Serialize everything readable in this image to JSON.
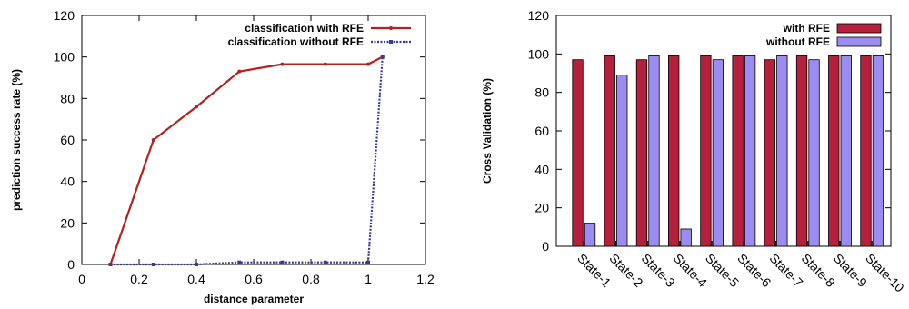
{
  "chart_data": [
    {
      "type": "line",
      "title": "",
      "xlabel": "distance parameter",
      "ylabel": "prediction success rate (%)",
      "xlim": [
        0,
        1.2
      ],
      "ylim": [
        0,
        120
      ],
      "xticks": [
        "0",
        "0.2",
        "0.4",
        "0.6",
        "0.8",
        "1",
        "1.2"
      ],
      "yticks": [
        "0",
        "20",
        "40",
        "60",
        "80",
        "100",
        "120"
      ],
      "grid": false,
      "legend_position": "top-right",
      "series": [
        {
          "name": "classification with RFE",
          "color": "#b22222",
          "style": "solid",
          "points": [
            [
              0.1,
              0
            ],
            [
              0.25,
              60
            ],
            [
              0.4,
              76
            ],
            [
              0.55,
              93
            ],
            [
              0.7,
              96.5
            ],
            [
              0.85,
              96.5
            ],
            [
              1.0,
              96.5
            ],
            [
              1.05,
              100
            ]
          ]
        },
        {
          "name": "classification without RFE",
          "color": "#3b3b8f",
          "style": "dotted",
          "points": [
            [
              0.1,
              0
            ],
            [
              0.25,
              0
            ],
            [
              0.4,
              0
            ],
            [
              0.55,
              1
            ],
            [
              0.7,
              1
            ],
            [
              0.85,
              1
            ],
            [
              1.0,
              1
            ],
            [
              1.05,
              100
            ]
          ]
        }
      ]
    },
    {
      "type": "bar",
      "title": "",
      "xlabel": "",
      "ylabel": "Cross Validation (%)",
      "ylim": [
        0,
        120
      ],
      "yticks": [
        "0",
        "20",
        "40",
        "60",
        "80",
        "100",
        "120"
      ],
      "grid": false,
      "legend_position": "top-right",
      "categories": [
        "State-1",
        "State-2",
        "State-3",
        "State-4",
        "State-5",
        "State-6",
        "State-7",
        "State-8",
        "State-9",
        "State-10"
      ],
      "series": [
        {
          "name": "with RFE",
          "color": "#b5203c",
          "values": [
            97,
            99,
            97,
            99,
            99,
            99,
            97,
            99,
            99,
            99
          ]
        },
        {
          "name": "without RFE",
          "color": "#9b8cf2",
          "values": [
            12,
            89,
            99,
            9,
            97,
            99,
            99,
            97,
            99,
            99
          ]
        }
      ]
    }
  ]
}
